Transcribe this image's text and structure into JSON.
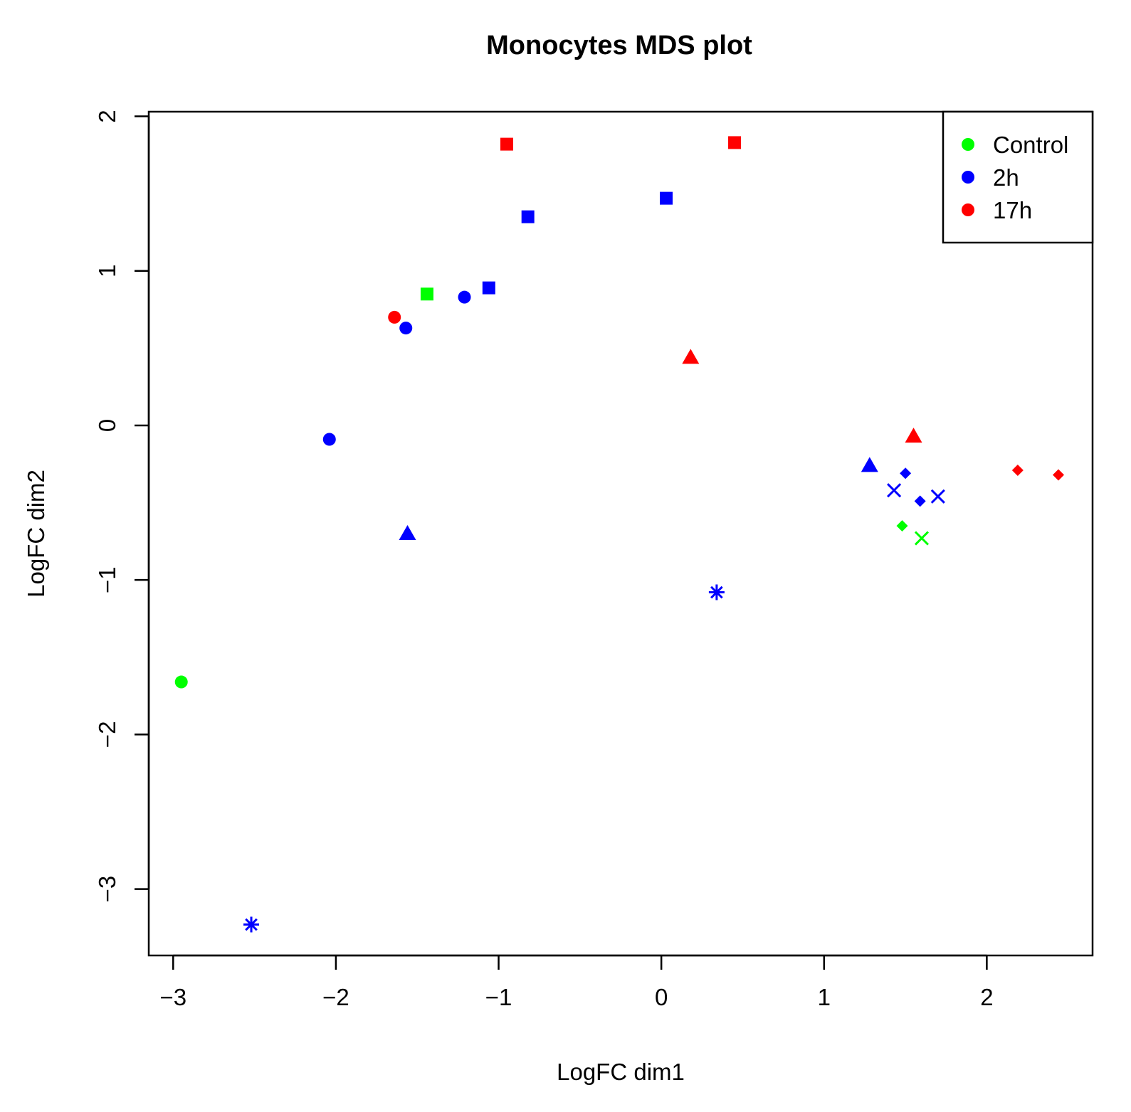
{
  "chart_data": {
    "type": "scatter",
    "title": "Monocytes MDS plot",
    "xlabel": "LogFC dim1",
    "ylabel": "LogFC dim2",
    "xlim": [
      -3.15,
      2.65
    ],
    "ylim": [
      -3.43,
      2.03
    ],
    "xticks": [
      -3,
      -2,
      -1,
      0,
      1,
      2
    ],
    "xtick_labels": [
      "−3",
      "−2",
      "−1",
      "0",
      "1",
      "2"
    ],
    "yticks": [
      -3,
      -2,
      -1,
      0,
      1,
      2
    ],
    "ytick_labels": [
      "−3",
      "−2",
      "−1",
      "0",
      "1",
      "2"
    ],
    "grid": false,
    "legend_position": "top-right",
    "legend": [
      {
        "label": "Control",
        "color": "#00ff00"
      },
      {
        "label": "2h",
        "color": "#0000ff"
      },
      {
        "label": "17h",
        "color": "#ff0000"
      }
    ],
    "points": [
      {
        "x": -2.95,
        "y": -1.66,
        "group": "Control",
        "shape": "circle"
      },
      {
        "x": -1.44,
        "y": 0.85,
        "group": "Control",
        "shape": "square"
      },
      {
        "x": 1.48,
        "y": -0.65,
        "group": "Control",
        "shape": "diamond"
      },
      {
        "x": 1.6,
        "y": -0.73,
        "group": "Control",
        "shape": "cross"
      },
      {
        "x": -2.04,
        "y": -0.09,
        "group": "2h",
        "shape": "circle"
      },
      {
        "x": -1.57,
        "y": 0.63,
        "group": "2h",
        "shape": "circle"
      },
      {
        "x": -1.21,
        "y": 0.83,
        "group": "2h",
        "shape": "circle"
      },
      {
        "x": -1.06,
        "y": 0.89,
        "group": "2h",
        "shape": "square"
      },
      {
        "x": -0.82,
        "y": 1.35,
        "group": "2h",
        "shape": "square"
      },
      {
        "x": 0.03,
        "y": 1.47,
        "group": "2h",
        "shape": "square"
      },
      {
        "x": -1.56,
        "y": -0.7,
        "group": "2h",
        "shape": "triangle"
      },
      {
        "x": 1.28,
        "y": -0.26,
        "group": "2h",
        "shape": "triangle"
      },
      {
        "x": 1.5,
        "y": -0.31,
        "group": "2h",
        "shape": "diamond"
      },
      {
        "x": 1.59,
        "y": -0.49,
        "group": "2h",
        "shape": "diamond"
      },
      {
        "x": 1.43,
        "y": -0.42,
        "group": "2h",
        "shape": "cross"
      },
      {
        "x": 1.7,
        "y": -0.46,
        "group": "2h",
        "shape": "cross"
      },
      {
        "x": -2.52,
        "y": -3.23,
        "group": "2h",
        "shape": "asterisk"
      },
      {
        "x": 0.34,
        "y": -1.08,
        "group": "2h",
        "shape": "asterisk"
      },
      {
        "x": -1.64,
        "y": 0.7,
        "group": "17h",
        "shape": "circle"
      },
      {
        "x": -0.95,
        "y": 1.82,
        "group": "17h",
        "shape": "square"
      },
      {
        "x": 0.45,
        "y": 1.83,
        "group": "17h",
        "shape": "square"
      },
      {
        "x": 0.18,
        "y": 0.44,
        "group": "17h",
        "shape": "triangle"
      },
      {
        "x": 1.55,
        "y": -0.07,
        "group": "17h",
        "shape": "triangle"
      },
      {
        "x": 2.19,
        "y": -0.29,
        "group": "17h",
        "shape": "diamond"
      },
      {
        "x": 2.44,
        "y": -0.32,
        "group": "17h",
        "shape": "diamond"
      }
    ]
  }
}
